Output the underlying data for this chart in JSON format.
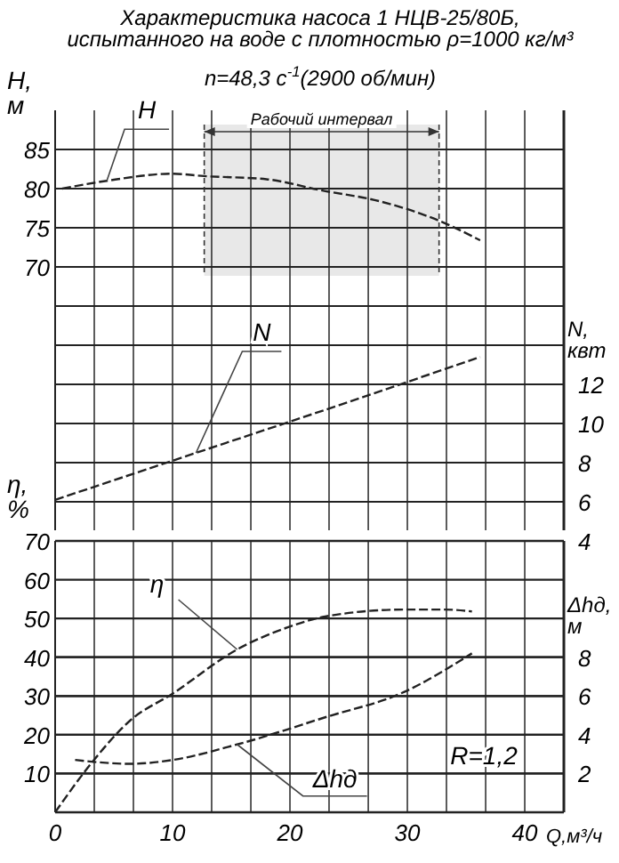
{
  "chart_data": [
    {
      "type": "line",
      "title": "Характеристика насоса 1 НЦВ-25/80Б,\nиспытанного  на воде с плотностью ρ=1000 кг/м³",
      "subtitle": "n=48,3 с$^{-1}$(2900 об/мин)",
      "ylabel": "H,\nм",
      "y2label": "N,\nквт",
      "xlim": [
        0,
        43.33
      ],
      "xticks": [
        {
          "value": 0,
          "label": null
        },
        {
          "value": 3.333,
          "label": null
        },
        {
          "value": 6.667,
          "label": null
        },
        {
          "value": 10,
          "label": null
        },
        {
          "value": 13.33,
          "label": null
        },
        {
          "value": 16.67,
          "label": null
        },
        {
          "value": 20,
          "label": null
        },
        {
          "value": 23.33,
          "label": null
        },
        {
          "value": 26.67,
          "label": null
        },
        {
          "value": 30,
          "label": null
        },
        {
          "value": 33.33,
          "label": null
        },
        {
          "value": 36.67,
          "label": null
        },
        {
          "value": 40,
          "label": null
        }
      ],
      "ylim": [
        35,
        90
      ],
      "yticks": [
        70,
        75,
        80,
        85
      ],
      "y2lim": [
        4,
        26
      ],
      "y2ticks": [
        4,
        6,
        8,
        10,
        12,
        {
          "value": 14,
          "label": null
        },
        {
          "value": 16,
          "label": null
        }
      ],
      "series": [
        {
          "name": "H",
          "color": "#222222",
          "x": [
            0.6,
            4.4,
            10,
            12.7,
            18,
            22.6,
            27.6,
            32.7,
            36.2
          ],
          "values": [
            80,
            81,
            81.9,
            81.6,
            81.2,
            79.8,
            78.4,
            75.9,
            73.4
          ]
        },
        {
          "name": "N",
          "color": "#222222",
          "axis": "y2",
          "x": [
            0,
            12,
            24,
            36.2
          ],
          "values": [
            6.1,
            8.5,
            10.9,
            13.4
          ]
        }
      ],
      "bands": [
        {
          "axis": "x",
          "from": 12.7,
          "to": 32.7,
          "label": "Рабочий интервал",
          "color": "#e8e8e8"
        }
      ],
      "grid": true,
      "tick_labels": "y",
      "line_style": "dashed",
      "marker": "none"
    },
    {
      "type": "line",
      "xlabel": "Q,м³/ч",
      "ylabel": "η,\n%",
      "y2label": "Δhд,\nм",
      "xlim": [
        0,
        43.33
      ],
      "xticks": [
        0,
        {
          "value": 3.333,
          "label": null
        },
        {
          "value": 6.667,
          "label": null
        },
        10,
        {
          "value": 13.33,
          "label": null
        },
        {
          "value": 16.67,
          "label": null
        },
        20,
        {
          "value": 23.33,
          "label": null
        },
        {
          "value": 26.67,
          "label": null
        },
        30,
        {
          "value": 33.33,
          "label": null
        },
        {
          "value": 36.67,
          "label": null
        },
        40
      ],
      "ylim": [
        0,
        70
      ],
      "yticks": [
        10,
        20,
        30,
        40,
        50,
        60,
        70
      ],
      "y2lim": [
        0,
        14
      ],
      "y2ticks": [
        2,
        4,
        6,
        8
      ],
      "series": [
        {
          "name": "η",
          "color": "#222222",
          "x": [
            0,
            3.2,
            6.4,
            10,
            15.5,
            19.8,
            23,
            29.7,
            33.2,
            35.5
          ],
          "values": [
            0,
            13.1,
            23.7,
            30.6,
            42,
            47.7,
            50.5,
            52.3,
            52.3,
            51.8
          ]
        },
        {
          "name": "Δhд",
          "color": "#222222",
          "axis": "y2",
          "x": [
            1.7,
            6.4,
            10,
            15.5,
            23,
            29.7,
            35.5
          ],
          "values": [
            2.7,
            2.5,
            2.7,
            3.5,
            4.9,
            6.2,
            8.2
          ]
        }
      ],
      "annotations": [
        "R=1,2"
      ],
      "grid": true,
      "line_style": "dashed",
      "marker": "none"
    }
  ]
}
